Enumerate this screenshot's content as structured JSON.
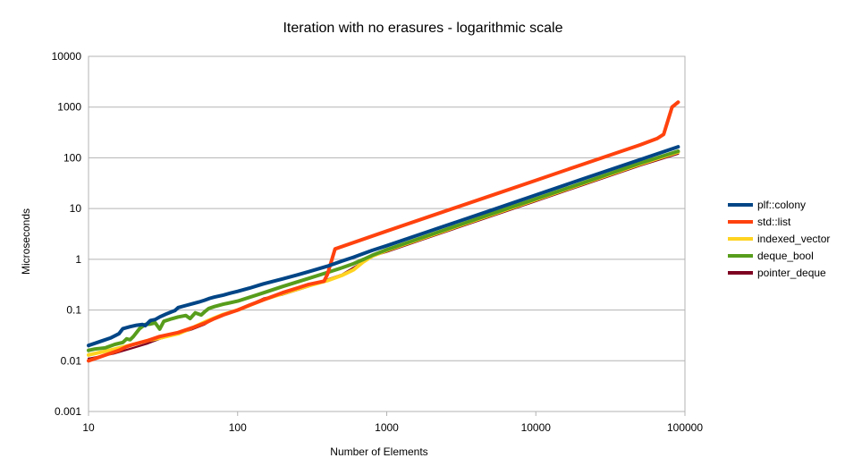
{
  "chart_data": {
    "type": "line",
    "title": "Iteration with no erasures - logarithmic scale",
    "xlabel": "Number of Elements",
    "ylabel": "Microseconds",
    "x_scale": "log",
    "y_scale": "log",
    "xlim": [
      10,
      100000
    ],
    "ylim": [
      0.001,
      10000
    ],
    "x_ticks": [
      "10",
      "100",
      "1000",
      "10000",
      "100000"
    ],
    "y_ticks": [
      "0.001",
      "0.01",
      "0.1",
      "1",
      "10",
      "100",
      "1000",
      "10000"
    ],
    "grid": "horizontal",
    "legend_position": "right",
    "series": [
      {
        "name": "plf::colony",
        "color": "#004586",
        "points": [
          [
            10,
            0.02
          ],
          [
            12,
            0.024
          ],
          [
            14,
            0.028
          ],
          [
            15,
            0.031
          ],
          [
            16,
            0.034
          ],
          [
            17,
            0.043
          ],
          [
            19,
            0.047
          ],
          [
            21,
            0.05
          ],
          [
            23,
            0.052
          ],
          [
            24,
            0.049
          ],
          [
            26,
            0.062
          ],
          [
            28,
            0.065
          ],
          [
            30,
            0.073
          ],
          [
            33,
            0.083
          ],
          [
            36,
            0.092
          ],
          [
            38,
            0.098
          ],
          [
            40,
            0.112
          ],
          [
            45,
            0.123
          ],
          [
            50,
            0.134
          ],
          [
            55,
            0.144
          ],
          [
            60,
            0.156
          ],
          [
            65,
            0.17
          ],
          [
            70,
            0.18
          ],
          [
            80,
            0.197
          ],
          [
            90,
            0.216
          ],
          [
            100,
            0.233
          ],
          [
            120,
            0.27
          ],
          [
            140,
            0.31
          ],
          [
            150,
            0.33
          ],
          [
            200,
            0.41
          ],
          [
            250,
            0.49
          ],
          [
            300,
            0.57
          ],
          [
            400,
            0.73
          ],
          [
            500,
            0.92
          ],
          [
            600,
            1.1
          ],
          [
            700,
            1.3
          ],
          [
            800,
            1.5
          ],
          [
            1000,
            1.85
          ],
          [
            2000,
            3.7
          ],
          [
            5000,
            9.2
          ],
          [
            10000,
            18.5
          ],
          [
            20000,
            37
          ],
          [
            50000,
            92
          ],
          [
            90000,
            165
          ]
        ]
      },
      {
        "name": "std::list",
        "color": "#ff420e",
        "points": [
          [
            10,
            0.01
          ],
          [
            12,
            0.012
          ],
          [
            14,
            0.014
          ],
          [
            16,
            0.016
          ],
          [
            18,
            0.019
          ],
          [
            20,
            0.021
          ],
          [
            25,
            0.025
          ],
          [
            30,
            0.03
          ],
          [
            40,
            0.036
          ],
          [
            50,
            0.045
          ],
          [
            60,
            0.055
          ],
          [
            70,
            0.068
          ],
          [
            80,
            0.08
          ],
          [
            100,
            0.1
          ],
          [
            120,
            0.125
          ],
          [
            150,
            0.16
          ],
          [
            200,
            0.22
          ],
          [
            250,
            0.27
          ],
          [
            300,
            0.32
          ],
          [
            380,
            0.37
          ],
          [
            400,
            0.5
          ],
          [
            450,
            1.6
          ],
          [
            1000,
            3.6
          ],
          [
            2000,
            7.2
          ],
          [
            5000,
            18
          ],
          [
            10000,
            36
          ],
          [
            20000,
            72
          ],
          [
            50000,
            180
          ],
          [
            65000,
            240
          ],
          [
            72000,
            290
          ],
          [
            82000,
            1000
          ],
          [
            90000,
            1250
          ]
        ]
      },
      {
        "name": "indexed_vector",
        "color": "#ffd320",
        "points": [
          [
            10,
            0.013
          ],
          [
            15,
            0.017
          ],
          [
            20,
            0.021
          ],
          [
            25,
            0.025
          ],
          [
            30,
            0.028
          ],
          [
            40,
            0.034
          ],
          [
            50,
            0.045
          ],
          [
            60,
            0.058
          ],
          [
            70,
            0.07
          ],
          [
            80,
            0.082
          ],
          [
            100,
            0.1
          ],
          [
            150,
            0.16
          ],
          [
            200,
            0.21
          ],
          [
            300,
            0.3
          ],
          [
            400,
            0.38
          ],
          [
            500,
            0.48
          ],
          [
            600,
            0.62
          ],
          [
            700,
            0.9
          ],
          [
            800,
            1.15
          ],
          [
            1000,
            1.5
          ],
          [
            2000,
            3
          ],
          [
            5000,
            7.5
          ],
          [
            10000,
            15
          ],
          [
            20000,
            30
          ],
          [
            50000,
            75
          ],
          [
            90000,
            130
          ]
        ]
      },
      {
        "name": "deque_bool",
        "color": "#579d1c",
        "points": [
          [
            10,
            0.016
          ],
          [
            11,
            0.017
          ],
          [
            13,
            0.018
          ],
          [
            15,
            0.021
          ],
          [
            17,
            0.023
          ],
          [
            18,
            0.027
          ],
          [
            19,
            0.026
          ],
          [
            20,
            0.03
          ],
          [
            22,
            0.043
          ],
          [
            24,
            0.052
          ],
          [
            26,
            0.053
          ],
          [
            28,
            0.056
          ],
          [
            30,
            0.042
          ],
          [
            32,
            0.06
          ],
          [
            36,
            0.067
          ],
          [
            40,
            0.073
          ],
          [
            45,
            0.078
          ],
          [
            48,
            0.068
          ],
          [
            52,
            0.088
          ],
          [
            57,
            0.08
          ],
          [
            60,
            0.092
          ],
          [
            64,
            0.107
          ],
          [
            70,
            0.117
          ],
          [
            80,
            0.13
          ],
          [
            100,
            0.15
          ],
          [
            150,
            0.22
          ],
          [
            200,
            0.29
          ],
          [
            300,
            0.42
          ],
          [
            400,
            0.55
          ],
          [
            500,
            0.68
          ],
          [
            600,
            0.82
          ],
          [
            700,
            1.0
          ],
          [
            800,
            1.2
          ],
          [
            1000,
            1.55
          ],
          [
            2000,
            3.1
          ],
          [
            5000,
            7.8
          ],
          [
            10000,
            15.5
          ],
          [
            20000,
            31
          ],
          [
            50000,
            78
          ],
          [
            90000,
            135
          ]
        ]
      },
      {
        "name": "pointer_deque",
        "color": "#7e0021",
        "points": [
          [
            10,
            0.011
          ],
          [
            15,
            0.014
          ],
          [
            20,
            0.018
          ],
          [
            25,
            0.022
          ],
          [
            30,
            0.027
          ],
          [
            40,
            0.034
          ],
          [
            50,
            0.042
          ],
          [
            60,
            0.052
          ],
          [
            70,
            0.068
          ],
          [
            80,
            0.08
          ],
          [
            100,
            0.1
          ],
          [
            150,
            0.17
          ],
          [
            200,
            0.2
          ],
          [
            300,
            0.29
          ],
          [
            400,
            0.4
          ],
          [
            500,
            0.5
          ],
          [
            700,
            0.9
          ],
          [
            800,
            1.15
          ],
          [
            1000,
            1.4
          ],
          [
            2000,
            2.8
          ],
          [
            5000,
            7
          ],
          [
            10000,
            14
          ],
          [
            20000,
            28
          ],
          [
            50000,
            70
          ],
          [
            90000,
            120
          ]
        ]
      }
    ]
  }
}
